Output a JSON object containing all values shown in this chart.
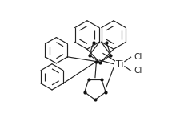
{
  "bg_color": "#ffffff",
  "line_color": "#222222",
  "dot_color": "#111111",
  "lw": 0.85,
  "dot_size": 2.0,
  "ti_label": "Ti",
  "cl_label": "Cl",
  "ti_fontsize": 8.0,
  "cl_fontsize": 7.5
}
